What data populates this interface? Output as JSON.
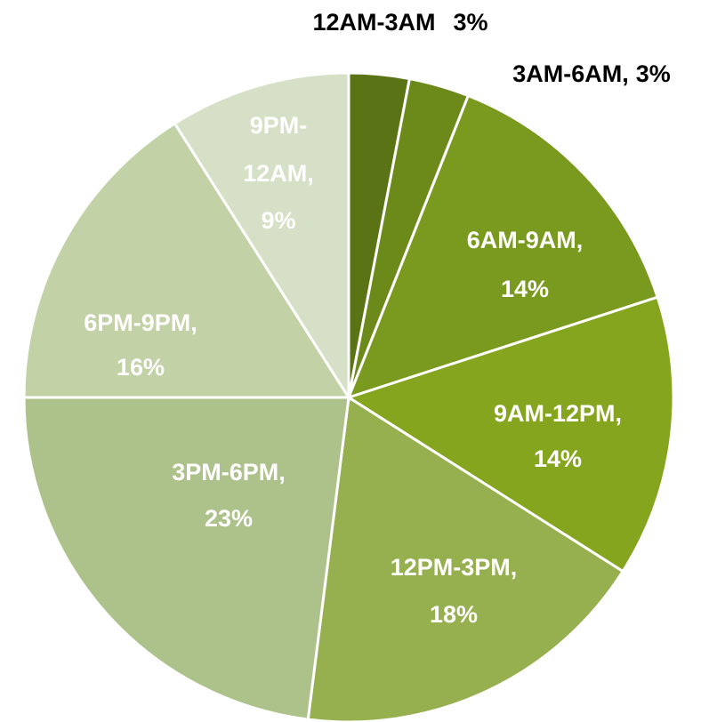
{
  "chart_data": {
    "type": "pie",
    "categories": [
      "12AM-3AM",
      "3AM-6AM,",
      "6AM-9AM,",
      "9AM-12PM,",
      "12PM-3PM,",
      "3PM-6PM,",
      "6PM-9PM,",
      "9PM-12AM,"
    ],
    "values": [
      3,
      3,
      14,
      14,
      18,
      23,
      16,
      9
    ],
    "value_labels": [
      "3%",
      "3%",
      "14%",
      "14%",
      "18%",
      "23%",
      "16%",
      "9%"
    ],
    "colors": [
      "#5a7314",
      "#6b8a1a",
      "#7a9a1f",
      "#86a51e",
      "#97b04f",
      "#adc18a",
      "#c3d1a6",
      "#d6e0c6"
    ]
  }
}
